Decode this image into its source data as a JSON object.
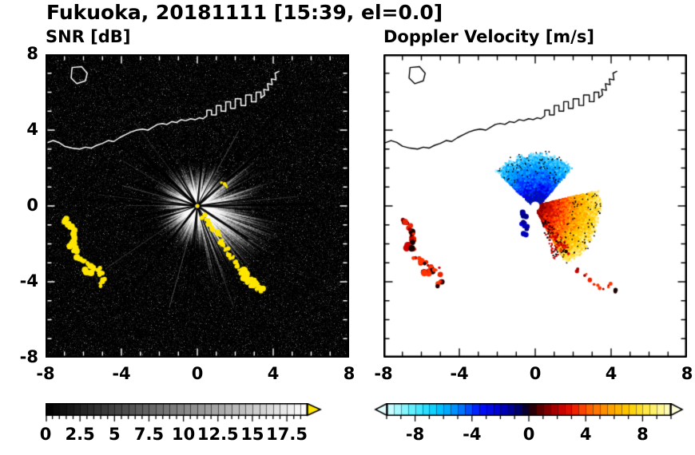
{
  "title": "Fukuoka, 20181111 [15:39, el=0.0]",
  "chart_data": [
    {
      "type": "heatmap",
      "panel": "snr",
      "title": "SNR [dB]",
      "xlim": [
        -8,
        8
      ],
      "ylim": [
        -8,
        8
      ],
      "xticks": [
        -8,
        -4,
        0,
        4,
        8
      ],
      "yticks": [
        8,
        4,
        0,
        -4,
        -8
      ],
      "minor_tick_step": 1,
      "grid": false,
      "background": "#000000",
      "tick_color": "#ffffff",
      "colorbar": {
        "range": [
          0,
          19
        ],
        "tick_labels": [
          "0",
          "2.5",
          "5",
          "7.5",
          "10",
          "12.5",
          "15",
          "17.5"
        ],
        "tick_values": [
          0,
          2.5,
          5,
          7.5,
          10,
          12.5,
          15,
          17.5
        ],
        "minor_tick_step": 0.5,
        "colormap": "grayscale-black-to-white",
        "over_arrow_color": "#ffe600"
      },
      "features": {
        "description": "PPI radar SNR scan: speckled dark background, bright echo fan centred on the radar at the origin with dark radial shadow spokes, strongest returns toward the southeast, yellow high-SNR clutter arcs to the west-southwest and along a line to the southeast, white coastline of Hakata Bay along the top",
        "radar_center": [
          0,
          0
        ],
        "clutter_color": "#ffe600",
        "specks": [
          [
            1.35,
            1.15
          ],
          [
            1.6,
            1.05
          ]
        ]
      }
    },
    {
      "type": "heatmap",
      "panel": "doppler",
      "title": "Doppler Velocity [m/s]",
      "xlim": [
        -8,
        8
      ],
      "ylim": [
        -8,
        8
      ],
      "xticks": [
        -8,
        -4,
        0,
        4,
        8
      ],
      "yticks": [
        8,
        4,
        0,
        -4,
        -8
      ],
      "minor_tick_step": 1,
      "grid": false,
      "background": "#ffffff",
      "tick_color": "#000000",
      "colorbar": {
        "range": [
          -10,
          10
        ],
        "tick_labels": [
          "-8",
          "-4",
          "0",
          "4",
          "8"
        ],
        "tick_values": [
          -8,
          -4,
          0,
          4,
          8
        ],
        "minor_tick_step": 1,
        "colormap_stops": [
          [
            -10,
            "#d8ffff"
          ],
          [
            -8,
            "#55eeff"
          ],
          [
            -6.5,
            "#00ccff"
          ],
          [
            -5,
            "#0088ff"
          ],
          [
            -3.5,
            "#0011ff"
          ],
          [
            -2,
            "#0000cc"
          ],
          [
            -0.7,
            "#000066"
          ],
          [
            0,
            "#100010"
          ],
          [
            0.7,
            "#550000"
          ],
          [
            2,
            "#bb0000"
          ],
          [
            3,
            "#ee1100"
          ],
          [
            4,
            "#ff5500"
          ],
          [
            5.5,
            "#ff9900"
          ],
          [
            7,
            "#ffcc00"
          ],
          [
            8.5,
            "#ffee55"
          ],
          [
            10,
            "#ffffcc"
          ]
        ],
        "under_arrow_color": "#e6ffff",
        "over_arrow_color": "#ffffd8"
      },
      "features": {
        "description": "Doppler velocity PPI: blue fan (flow toward radar) north to northwest of the origin with cyan fringe, orange-yellow fan (flow away) east-southeast of the origin with red inner edge and pale-yellow fringe, red/black sea clutter patches to the west-southwest and scattered red-black specks to the southeast, black coastline at top",
        "radar_center": [
          0,
          0
        ],
        "toward_fan": {
          "angle_deg": [
            48,
            138
          ],
          "max_radius": 2.85,
          "palette": [
            "#001a99",
            "#0000e6",
            "#0033ff",
            "#0077ff",
            "#00aaff",
            "#44ccff",
            "#aaeeff"
          ]
        },
        "away_fan": {
          "angle_deg": [
            -62,
            14
          ],
          "max_radius": 3.4,
          "palette": [
            "#8b0000",
            "#cc1100",
            "#ff3300",
            "#ff7700",
            "#ffaa00",
            "#ffcc00",
            "#ffe45c",
            "#fff4aa"
          ]
        },
        "edge_speck_color": "#000000",
        "near_center_streak": [
          [
            -0.7,
            -0.35
          ],
          [
            -0.55,
            -0.6
          ],
          [
            -0.62,
            -0.9
          ],
          [
            -0.5,
            -1.15
          ],
          [
            -0.58,
            -1.45
          ]
        ],
        "streak_palette": [
          "#0000bb",
          "#0000e6",
          "#000088"
        ],
        "clutter_palette": [
          "#cc0000",
          "#ee2200",
          "#990000",
          "#1a0000",
          "#ff3300"
        ],
        "se_specks": [
          [
            2.3,
            -3.4
          ],
          [
            2.6,
            -3.65
          ],
          [
            2.9,
            -3.9
          ],
          [
            3.2,
            -4.15
          ],
          [
            3.5,
            -4.35
          ],
          [
            3.9,
            -4.2
          ],
          [
            4.2,
            -4.5
          ],
          [
            1.45,
            -2.1
          ],
          [
            1.7,
            -2.45
          ],
          [
            1.1,
            -1.6
          ]
        ]
      }
    }
  ],
  "clutter": {
    "chains": {
      "west_hook": [
        [
          -6.95,
          -0.75
        ],
        [
          -6.8,
          -0.95
        ],
        [
          -6.65,
          -1.1
        ],
        [
          -6.55,
          -1.3
        ],
        [
          -6.5,
          -1.55
        ],
        [
          -6.5,
          -1.8
        ],
        [
          -6.55,
          -2.0
        ],
        [
          -6.7,
          -2.15
        ],
        [
          -6.45,
          -2.3
        ]
      ],
      "west_lower": [
        [
          -6.35,
          -2.7
        ],
        [
          -6.15,
          -2.85
        ],
        [
          -5.95,
          -2.95
        ],
        [
          -5.75,
          -3.05
        ],
        [
          -5.55,
          -3.2
        ],
        [
          -5.4,
          -3.35
        ],
        [
          -5.6,
          -3.5
        ],
        [
          -5.85,
          -3.45
        ]
      ],
      "west_small": [
        [
          -5.15,
          -3.3
        ],
        [
          -5.05,
          -3.6
        ],
        [
          -4.95,
          -3.9
        ],
        [
          -5.1,
          -4.15
        ]
      ],
      "se_line": [
        [
          0.35,
          -0.55
        ],
        [
          0.5,
          -0.75
        ],
        [
          0.68,
          -0.95
        ],
        [
          0.85,
          -1.18
        ],
        [
          1.0,
          -1.4
        ],
        [
          1.12,
          -1.62
        ],
        [
          1.27,
          -1.84
        ],
        [
          1.42,
          -2.05
        ],
        [
          1.55,
          -2.28
        ],
        [
          1.68,
          -2.5
        ],
        [
          1.82,
          -2.72
        ],
        [
          1.95,
          -2.93
        ],
        [
          2.1,
          -3.12
        ],
        [
          2.25,
          -3.3
        ]
      ],
      "se_blobs": [
        [
          2.4,
          -3.45
        ],
        [
          2.6,
          -3.6
        ],
        [
          2.45,
          -3.8
        ],
        [
          2.7,
          -3.95
        ],
        [
          2.95,
          -3.85
        ],
        [
          3.1,
          -4.05
        ],
        [
          2.85,
          -4.2
        ],
        [
          3.2,
          -4.3
        ],
        [
          3.45,
          -4.4
        ]
      ]
    }
  },
  "coastline": {
    "color_on_dark": "#ffffff",
    "color_on_light": "#000000",
    "main": [
      [
        -8,
        3.3
      ],
      [
        -7.6,
        3.45
      ],
      [
        -7.3,
        3.35
      ],
      [
        -7,
        3.15
      ],
      [
        -6.6,
        3.05
      ],
      [
        -6.2,
        3
      ],
      [
        -5.9,
        3.1
      ],
      [
        -5.6,
        3.05
      ],
      [
        -5.3,
        3.2
      ],
      [
        -5,
        3.3
      ],
      [
        -4.7,
        3.45
      ],
      [
        -4.4,
        3.4
      ],
      [
        -4.1,
        3.6
      ],
      [
        -3.8,
        3.75
      ],
      [
        -3.5,
        3.9
      ],
      [
        -3.2,
        4
      ],
      [
        -2.9,
        4.05
      ],
      [
        -2.6,
        4
      ],
      [
        -2.35,
        4.15
      ],
      [
        -2.1,
        4.3
      ],
      [
        -1.85,
        4.35
      ],
      [
        -1.6,
        4.3
      ],
      [
        -1.35,
        4.45
      ],
      [
        -1.1,
        4.4
      ],
      [
        -0.85,
        4.55
      ],
      [
        -0.6,
        4.5
      ],
      [
        -0.35,
        4.6
      ],
      [
        -0.1,
        4.55
      ],
      [
        0.1,
        4.65
      ],
      [
        0.3,
        4.6
      ],
      [
        0.5,
        4.75
      ],
      [
        0.5,
        5.05
      ],
      [
        0.75,
        5.05
      ],
      [
        0.75,
        4.8
      ],
      [
        1,
        4.8
      ],
      [
        1,
        5.3
      ],
      [
        1.25,
        5.3
      ],
      [
        1.25,
        5
      ],
      [
        1.5,
        5
      ],
      [
        1.5,
        5.5
      ],
      [
        1.75,
        5.5
      ],
      [
        1.75,
        5.15
      ],
      [
        2,
        5.15
      ],
      [
        2,
        5.65
      ],
      [
        2.3,
        5.65
      ],
      [
        2.3,
        5.3
      ],
      [
        2.55,
        5.3
      ],
      [
        2.55,
        5.85
      ],
      [
        2.85,
        5.85
      ],
      [
        2.85,
        5.5
      ],
      [
        3.1,
        5.5
      ],
      [
        3.1,
        6
      ],
      [
        3.35,
        6
      ],
      [
        3.35,
        5.7
      ],
      [
        3.55,
        5.85
      ],
      [
        3.5,
        6.15
      ],
      [
        3.75,
        6.1
      ],
      [
        3.7,
        6.45
      ],
      [
        3.95,
        6.4
      ],
      [
        3.9,
        6.7
      ],
      [
        4.15,
        6.65
      ],
      [
        4.1,
        7
      ],
      [
        4.3,
        7.1
      ]
    ],
    "island": [
      [
        -6.6,
        7.3
      ],
      [
        -6.1,
        7.35
      ],
      [
        -5.8,
        7
      ],
      [
        -5.9,
        6.6
      ],
      [
        -6.35,
        6.45
      ],
      [
        -6.65,
        6.75
      ]
    ]
  }
}
